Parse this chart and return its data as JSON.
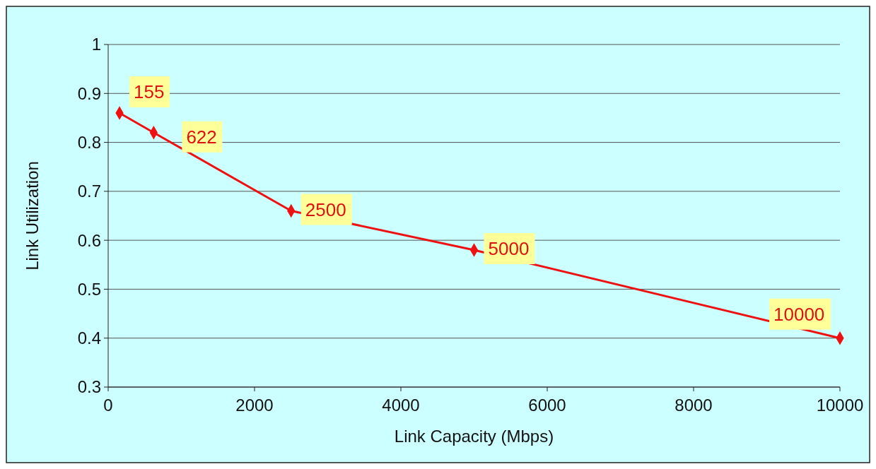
{
  "chart_data": {
    "type": "line",
    "xlabel": "Link Capacity (Mbps)",
    "ylabel": "Link Utilization",
    "x": [
      155,
      622,
      2500,
      5000,
      10000
    ],
    "series": [
      {
        "color": "#ee1111",
        "values": [
          0.86,
          0.82,
          0.66,
          0.58,
          0.4
        ]
      }
    ],
    "xlim": [
      0,
      10000
    ],
    "xticks": [
      0,
      2000,
      4000,
      6000,
      8000,
      10000
    ],
    "ylim": [
      0.3,
      1
    ],
    "yticks": [
      0.3,
      0.4,
      0.5,
      0.6,
      0.7,
      0.8,
      0.9,
      1
    ],
    "grid": "y",
    "marker": "diamond",
    "line_style": "solid",
    "annotations": [
      {
        "text": "155",
        "x": 155,
        "y": 0.86
      },
      {
        "text": "622",
        "x": 622,
        "y": 0.82
      },
      {
        "text": "2500",
        "x": 2500,
        "y": 0.66
      },
      {
        "text": "5000",
        "x": 5000,
        "y": 0.58
      },
      {
        "text": "10000",
        "x": 10000,
        "y": 0.4
      }
    ]
  }
}
